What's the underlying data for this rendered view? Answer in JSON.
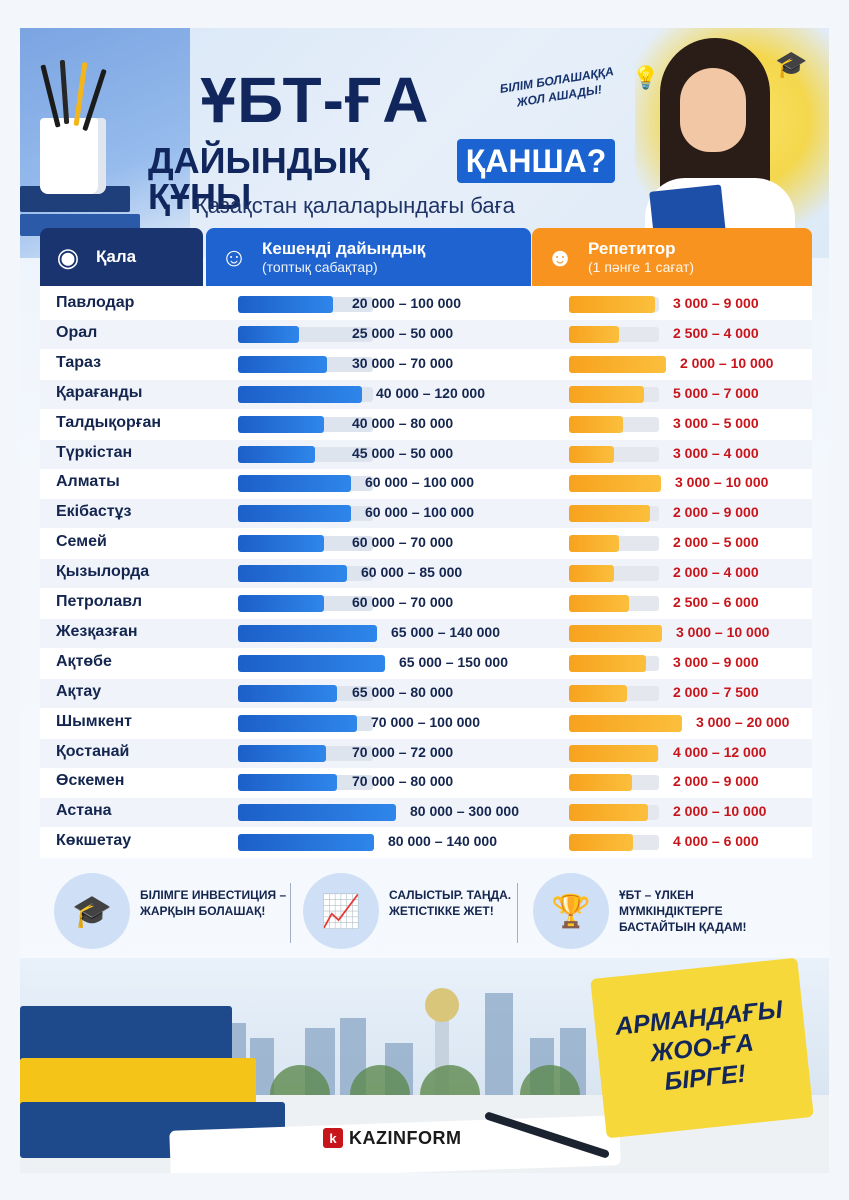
{
  "header": {
    "title_main": "ҰБТ-ҒА",
    "title_sub": "ДАЙЫНДЫҚ ҚҰНЫ",
    "title_highlight": "ҚАНША?",
    "subtitle": "Қазақстан қалаларындағы баға",
    "slogan": "БІЛІМ БОЛАШАҚҚА ЖОЛ АШАДЫ!"
  },
  "table": {
    "col_city": "Қала",
    "col_group": "Кешенді дайындық",
    "col_group_sub": "(топтық сабақтар)",
    "col_tutor": "Репетитор",
    "col_tutor_sub": "(1 пәнге 1 сағат)",
    "rows": [
      {
        "city": "Павлодар",
        "group": "20 000 – 100 000",
        "tutor": "3 000 – 9 000",
        "group_level": 0.7,
        "tutor_level": 0.95
      },
      {
        "city": "Орал",
        "group": "25 000 – 50 000",
        "tutor": "2 500 – 4 000",
        "group_level": 0.45,
        "tutor_level": 0.55
      },
      {
        "city": "Тараз",
        "group": "30 000 – 70 000",
        "tutor": "2 000 – 10 000",
        "group_level": 0.66,
        "tutor_level": 1.08
      },
      {
        "city": "Қарағанды",
        "group": "40 000 – 120 000",
        "tutor": "5 000 – 7 000",
        "group_level": 0.92,
        "tutor_level": 0.83
      },
      {
        "city": "Талдықорған",
        "group": "40 000 – 80 000",
        "tutor": "3 000 – 5 000",
        "group_level": 0.64,
        "tutor_level": 0.6
      },
      {
        "city": "Түркістан",
        "group": "45 000 – 50 000",
        "tutor": "3 000 – 4 000",
        "group_level": 0.57,
        "tutor_level": 0.5
      },
      {
        "city": "Алматы",
        "group": "60 000 – 100 000",
        "tutor": "3 000 – 10 000",
        "group_level": 0.84,
        "tutor_level": 1.02
      },
      {
        "city": "Екібастұз",
        "group": "60 000 – 100 000",
        "tutor": "2 000 – 9 000",
        "group_level": 0.84,
        "tutor_level": 0.9
      },
      {
        "city": "Семей",
        "group": "60 000 – 70 000",
        "tutor": "2 000 – 5 000",
        "group_level": 0.64,
        "tutor_level": 0.56
      },
      {
        "city": "Қызылорда",
        "group": "60 000 – 85 000",
        "tutor": "2 000 – 4 000",
        "group_level": 0.81,
        "tutor_level": 0.5
      },
      {
        "city": "Петролавл",
        "group": "60 000 – 70 000",
        "tutor": "2 500 – 6 000",
        "group_level": 0.64,
        "tutor_level": 0.67
      },
      {
        "city": "Жезқазған",
        "group": "65 000 – 140 000",
        "tutor": "3 000 – 10 000",
        "group_level": 1.03,
        "tutor_level": 1.03
      },
      {
        "city": "Ақтөбе",
        "group": "65 000 – 150 000",
        "tutor": "3 000 – 9 000",
        "group_level": 1.09,
        "tutor_level": 0.86
      },
      {
        "city": "Ақтау",
        "group": "65 000 – 80 000",
        "tutor": "2 000 – 7 500",
        "group_level": 0.73,
        "tutor_level": 0.64
      },
      {
        "city": "Шымкент",
        "group": "70 000 – 100 000",
        "tutor": "3 000 – 20 000",
        "group_level": 0.88,
        "tutor_level": 1.25
      },
      {
        "city": "Қостанай",
        "group": "70 000 – 72 000",
        "tutor": "4 000 – 12 000",
        "group_level": 0.65,
        "tutor_level": 0.99
      },
      {
        "city": "Өскемен",
        "group": "70 000 – 80 000",
        "tutor": "2 000 – 9 000",
        "group_level": 0.73,
        "tutor_level": 0.7
      },
      {
        "city": "Астана",
        "group": "80 000 – 300 000",
        "tutor": "2 000 – 10 000",
        "group_level": 1.17,
        "tutor_level": 0.88
      },
      {
        "city": "Көкшетау",
        "group": "80 000 – 140 000",
        "tutor": "4 000 – 6 000",
        "group_level": 1.01,
        "tutor_level": 0.71
      }
    ]
  },
  "features": [
    {
      "icon": "graduation-cap-icon",
      "text": "БІЛІМГЕ ИНВЕСТИЦИЯ – ЖАРҚЫН БОЛАШАҚ!"
    },
    {
      "icon": "growth-chart-icon",
      "text": "САЛЫСТЫР. ТАҢДА. ЖЕТІСТІККЕ ЖЕТ!"
    },
    {
      "icon": "trophy-icon",
      "text": "ҰБТ – ҮЛКЕН МҮМКІНДІКТЕРГЕ БАСТАЙТЫН ҚАДАМ!"
    }
  ],
  "badge": "АРМАНДАҒЫ ЖОО-ҒА БІРГЕ!",
  "brand": {
    "mark": "k",
    "name": "KAZINFORM"
  },
  "colors": {
    "navy": "#1a3470",
    "blue": "#1e63cf",
    "orange": "#f7931e",
    "red_value": "#c8151b"
  }
}
